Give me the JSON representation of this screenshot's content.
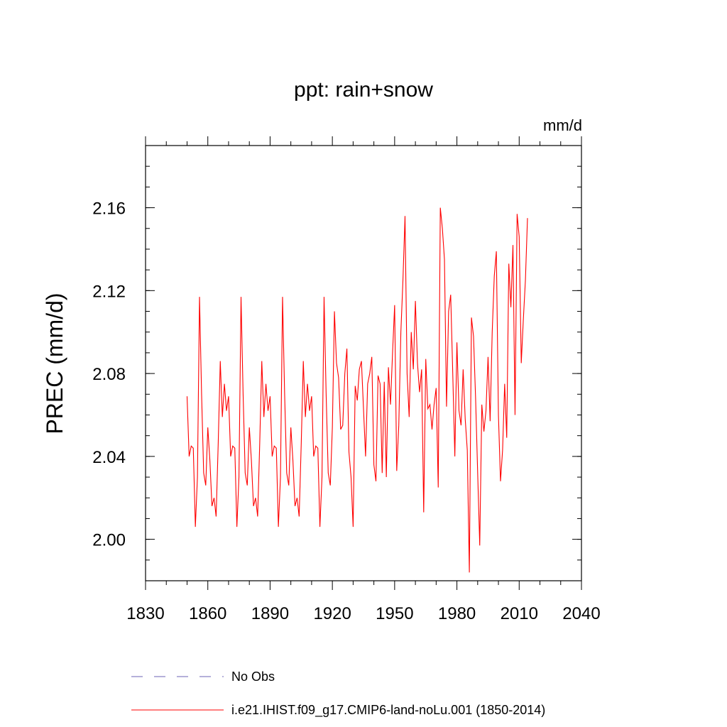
{
  "chart_data": {
    "type": "line",
    "title": "ppt: rain+snow",
    "units": "mm/d",
    "xlabel": "",
    "ylabel": "PREC  (mm/d)",
    "xlim": [
      1830,
      2040
    ],
    "ylim": [
      1.98,
      2.19
    ],
    "xticks": [
      "1830",
      "1860",
      "1890",
      "1920",
      "1950",
      "1980",
      "2010",
      "2040"
    ],
    "yticks": [
      "2.00",
      "2.04",
      "2.08",
      "2.12",
      "2.16"
    ],
    "grid": false,
    "legend_placement": "bottom",
    "series": [
      {
        "name": "i.e21.IHIST.f09_g17.CMIP6-land-noLu.001 (1850-2014)",
        "color": "#ff0000",
        "style": "solid",
        "x": [
          1850,
          1851,
          1852,
          1853,
          1854,
          1855,
          1856,
          1857,
          1858,
          1859,
          1860,
          1861,
          1862,
          1863,
          1864,
          1865,
          1866,
          1867,
          1868,
          1869,
          1870,
          1871,
          1872,
          1873,
          1874,
          1875,
          1876,
          1877,
          1878,
          1879,
          1880,
          1881,
          1882,
          1883,
          1884,
          1885,
          1886,
          1887,
          1888,
          1889,
          1890,
          1891,
          1892,
          1893,
          1894,
          1895,
          1896,
          1897,
          1898,
          1899,
          1900,
          1901,
          1902,
          1903,
          1904,
          1905,
          1906,
          1907,
          1908,
          1909,
          1910,
          1911,
          1912,
          1913,
          1914,
          1915,
          1916,
          1917,
          1918,
          1919,
          1920,
          1921,
          1922,
          1923,
          1924,
          1925,
          1926,
          1927,
          1928,
          1929,
          1930,
          1931,
          1932,
          1933,
          1934,
          1935,
          1936,
          1937,
          1938,
          1939,
          1940,
          1941,
          1942,
          1943,
          1944,
          1945,
          1946,
          1947,
          1948,
          1949,
          1950,
          1951,
          1952,
          1953,
          1954,
          1955,
          1956,
          1957,
          1958,
          1959,
          1960,
          1961,
          1962,
          1963,
          1964,
          1965,
          1966,
          1967,
          1968,
          1969,
          1970,
          1971,
          1972,
          1973,
          1974,
          1975,
          1976,
          1977,
          1978,
          1979,
          1980,
          1981,
          1982,
          1983,
          1984,
          1985,
          1986,
          1987,
          1988,
          1989,
          1990,
          1991,
          1992,
          1993,
          1994,
          1995,
          1996,
          1997,
          1998,
          1999,
          2000,
          2001,
          2002,
          2003,
          2004,
          2005,
          2006,
          2007,
          2008,
          2009,
          2010,
          2011,
          2012,
          2013,
          2014
        ],
        "values": [
          2.069,
          2.04,
          2.045,
          2.044,
          2.006,
          2.03,
          2.117,
          2.07,
          2.032,
          2.026,
          2.054,
          2.038,
          2.016,
          2.02,
          2.011,
          2.046,
          2.086,
          2.059,
          2.075,
          2.062,
          2.069,
          2.04,
          2.045,
          2.044,
          2.006,
          2.03,
          2.117,
          2.07,
          2.032,
          2.026,
          2.054,
          2.038,
          2.016,
          2.02,
          2.011,
          2.046,
          2.086,
          2.059,
          2.075,
          2.062,
          2.069,
          2.04,
          2.045,
          2.044,
          2.006,
          2.03,
          2.117,
          2.07,
          2.032,
          2.026,
          2.054,
          2.038,
          2.016,
          2.02,
          2.011,
          2.046,
          2.086,
          2.059,
          2.075,
          2.062,
          2.069,
          2.04,
          2.045,
          2.044,
          2.006,
          2.03,
          2.117,
          2.07,
          2.032,
          2.026,
          2.054,
          2.11,
          2.085,
          2.078,
          2.053,
          2.055,
          2.08,
          2.092,
          2.042,
          2.03,
          2.006,
          2.074,
          2.067,
          2.082,
          2.086,
          2.063,
          2.04,
          2.075,
          2.08,
          2.088,
          2.036,
          2.028,
          2.079,
          2.075,
          2.032,
          2.076,
          2.03,
          2.083,
          2.065,
          2.09,
          2.113,
          2.033,
          2.055,
          2.1,
          2.125,
          2.156,
          2.08,
          2.059,
          2.1,
          2.082,
          2.115,
          2.085,
          2.071,
          2.082,
          2.013,
          2.087,
          2.063,
          2.065,
          2.053,
          2.065,
          2.073,
          2.025,
          2.16,
          2.15,
          2.135,
          2.064,
          2.11,
          2.118,
          2.08,
          2.04,
          2.095,
          2.062,
          2.055,
          2.082,
          2.058,
          2.043,
          1.984,
          2.107,
          2.098,
          2.068,
          2.032,
          1.997,
          2.065,
          2.052,
          2.062,
          2.088,
          2.057,
          2.1,
          2.127,
          2.139,
          2.06,
          2.028,
          2.043,
          2.075,
          2.049,
          2.133,
          2.112,
          2.142,
          2.06,
          2.157,
          2.146,
          2.085,
          2.106,
          2.125,
          2.155
        ]
      }
    ]
  },
  "legend": [
    {
      "label": "No Obs",
      "color": "#6b63b5",
      "style": "dashed"
    },
    {
      "label": "i.e21.IHIST.f09_g17.CMIP6-land-noLu.001 (1850-2014)",
      "color": "#ff0000",
      "style": "solid"
    }
  ]
}
